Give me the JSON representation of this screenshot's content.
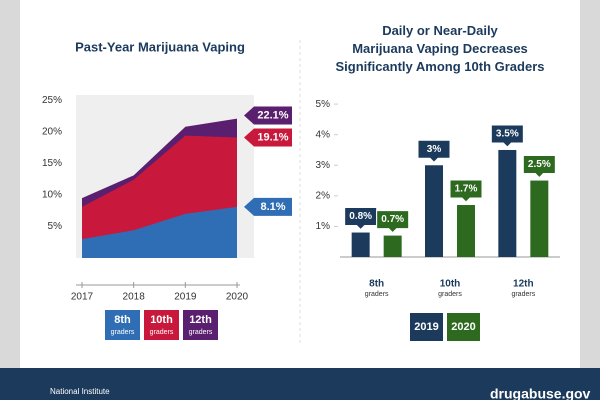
{
  "chart_data": [
    {
      "type": "area",
      "title": "Past-Year Marijuana Vaping",
      "x": [
        2017,
        2018,
        2019,
        2020
      ],
      "xlim": [
        2017,
        2020
      ],
      "xticks": [
        2017,
        2018,
        2019,
        2020
      ],
      "ylim": [
        0,
        26
      ],
      "yticks": [
        {
          "value": 5,
          "label": "5%"
        },
        {
          "value": 10,
          "label": "10%"
        },
        {
          "value": 15,
          "label": "15%"
        },
        {
          "value": 20,
          "label": "20%"
        },
        {
          "value": 25,
          "label": "25%"
        }
      ],
      "legend_note": "graders",
      "series": [
        {
          "name": "8th",
          "color": "#2f6db5",
          "values": [
            3.0,
            4.4,
            7.0,
            8.1
          ],
          "value_labels": [
            null,
            null,
            null,
            "8.1%"
          ]
        },
        {
          "name": "10th",
          "color": "#c8193c",
          "values": [
            8.1,
            12.4,
            19.4,
            19.1
          ],
          "value_labels": [
            null,
            null,
            null,
            "19.1%"
          ]
        },
        {
          "name": "12th",
          "color": "#5a1f6e",
          "values": [
            9.5,
            13.1,
            20.8,
            22.1
          ],
          "value_labels": [
            null,
            null,
            null,
            "22.1%"
          ]
        }
      ]
    },
    {
      "type": "bar",
      "title": "Daily or Near-Daily Marijuana Vaping Decreases Significantly Among 10th Graders",
      "categories": [
        "8th",
        "10th",
        "12th"
      ],
      "category_note": "graders",
      "ylim": [
        0,
        5.2
      ],
      "yticks": [
        {
          "value": 1,
          "label": "1%"
        },
        {
          "value": 2,
          "label": "2%"
        },
        {
          "value": 3,
          "label": "3%"
        },
        {
          "value": 4,
          "label": "4%"
        },
        {
          "value": 5,
          "label": "5%"
        }
      ],
      "series": [
        {
          "name": "2019",
          "color": "#1b3a5c",
          "values": [
            0.8,
            3,
            3.5
          ],
          "value_labels": [
            "0.8%",
            "3%",
            "3.5%"
          ]
        },
        {
          "name": "2020",
          "color": "#2d6a1f",
          "values": [
            0.7,
            1.7,
            2.5
          ],
          "value_labels": [
            "0.7%",
            "1.7%",
            "2.5%"
          ]
        }
      ]
    }
  ],
  "footer": {
    "org": "National Institute",
    "site": "drugabuse.gov"
  }
}
